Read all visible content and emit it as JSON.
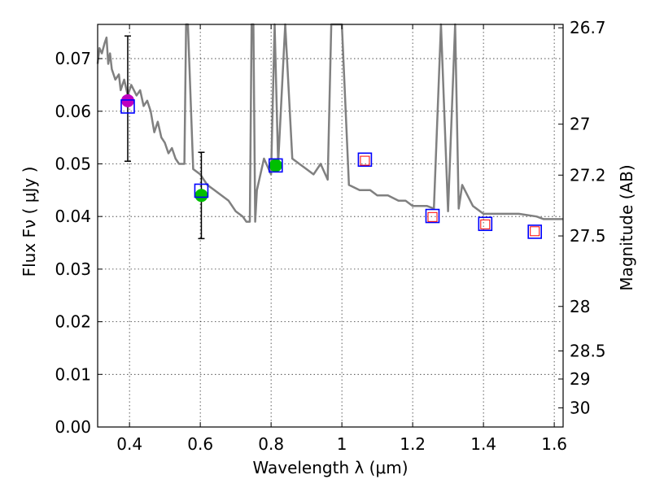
{
  "chart_data": {
    "type": "scatter",
    "title": "",
    "xlabel": "Wavelength  λ (μm)",
    "ylabel": "Flux  Fν  ( μJy )",
    "ylabel_right": "Magnitude (AB)",
    "xlim": [
      0.31,
      1.625
    ],
    "ylim": [
      0.0,
      0.0765
    ],
    "grid": true,
    "x_ticks": [
      0.4,
      0.6,
      0.8,
      1.0,
      1.2,
      1.4,
      1.6
    ],
    "x_tick_labels": [
      "0.4",
      "0.6",
      "0.8",
      "1",
      "1.2",
      "1.4",
      "1.6"
    ],
    "y_ticks": [
      0.0,
      0.01,
      0.02,
      0.03,
      0.04,
      0.05,
      0.06,
      0.07
    ],
    "y_tick_labels": [
      "0.00",
      "0.01",
      "0.02",
      "0.03",
      "0.04",
      "0.05",
      "0.06",
      "0.07"
    ],
    "right_axis_ticks": [
      {
        "mag": 26.7,
        "label": "26.7"
      },
      {
        "mag": 27.0,
        "label": "27"
      },
      {
        "mag": 27.2,
        "label": "27.2"
      },
      {
        "mag": 27.5,
        "label": "27.5"
      },
      {
        "mag": 28.0,
        "label": "28"
      },
      {
        "mag": 28.5,
        "label": "28.5"
      },
      {
        "mag": 29.0,
        "label": "29"
      },
      {
        "mag": 30.0,
        "label": "30"
      }
    ],
    "sed_model": {
      "name": "model spectrum",
      "color": "#808080",
      "x": [
        0.31,
        0.315,
        0.322,
        0.33,
        0.335,
        0.34,
        0.345,
        0.35,
        0.36,
        0.37,
        0.375,
        0.385,
        0.395,
        0.405,
        0.42,
        0.43,
        0.44,
        0.45,
        0.46,
        0.47,
        0.48,
        0.49,
        0.5,
        0.51,
        0.52,
        0.53,
        0.54,
        0.555,
        0.56,
        0.565,
        0.58,
        0.6,
        0.62,
        0.64,
        0.66,
        0.68,
        0.7,
        0.72,
        0.73,
        0.74,
        0.745,
        0.75,
        0.755,
        0.76,
        0.78,
        0.8,
        0.81,
        0.82,
        0.84,
        0.86,
        0.88,
        0.9,
        0.92,
        0.94,
        0.96,
        0.97,
        0.98,
        0.99,
        1.0,
        1.02,
        1.05,
        1.08,
        1.1,
        1.13,
        1.16,
        1.18,
        1.2,
        1.22,
        1.24,
        1.26,
        1.28,
        1.3,
        1.32,
        1.33,
        1.34,
        1.37,
        1.4,
        1.45,
        1.5,
        1.55,
        1.57,
        1.6,
        1.625
      ],
      "y": [
        0.069,
        0.072,
        0.071,
        0.073,
        0.074,
        0.069,
        0.071,
        0.068,
        0.066,
        0.067,
        0.064,
        0.066,
        0.063,
        0.065,
        0.063,
        0.064,
        0.061,
        0.062,
        0.06,
        0.056,
        0.058,
        0.055,
        0.054,
        0.052,
        0.053,
        0.051,
        0.05,
        0.05,
        0.0765,
        0.0765,
        0.049,
        0.048,
        0.046,
        0.045,
        0.044,
        0.043,
        0.041,
        0.04,
        0.039,
        0.039,
        0.0765,
        0.0765,
        0.039,
        0.045,
        0.051,
        0.048,
        0.0765,
        0.05,
        0.0765,
        0.051,
        0.05,
        0.049,
        0.048,
        0.05,
        0.047,
        0.0765,
        0.0765,
        0.0765,
        0.0765,
        0.046,
        0.045,
        0.045,
        0.044,
        0.044,
        0.043,
        0.043,
        0.042,
        0.042,
        0.042,
        0.0415,
        0.0765,
        0.041,
        0.0765,
        0.0415,
        0.046,
        0.042,
        0.0405,
        0.0405,
        0.0405,
        0.04,
        0.0395,
        0.0395,
        0.0395
      ]
    },
    "observed": [
      {
        "x": 0.395,
        "y": 0.062,
        "yerr_low": 0.0505,
        "yerr_high": 0.0743,
        "color": "#bf00bf"
      },
      {
        "x": 0.603,
        "y": 0.044,
        "yerr_low": 0.0358,
        "yerr_high": 0.0522,
        "color": "#00bf00"
      },
      {
        "x": 0.813,
        "y": 0.0497,
        "yerr_low": 0.0497,
        "yerr_high": 0.0497,
        "color": "#00bf00"
      }
    ],
    "synthetic_blue": [
      {
        "x": 0.395,
        "y": 0.0609
      },
      {
        "x": 0.603,
        "y": 0.0449
      },
      {
        "x": 0.813,
        "y": 0.0497
      },
      {
        "x": 1.065,
        "y": 0.0508
      },
      {
        "x": 1.256,
        "y": 0.0401
      },
      {
        "x": 1.405,
        "y": 0.0386
      },
      {
        "x": 1.545,
        "y": 0.0371
      }
    ],
    "synthetic_red": [
      {
        "x": 1.065,
        "y": 0.0506
      },
      {
        "x": 1.256,
        "y": 0.0399
      },
      {
        "x": 1.405,
        "y": 0.0385
      },
      {
        "x": 1.545,
        "y": 0.0372
      }
    ],
    "colors": {
      "blue_square": "#0000ff",
      "red_square": "#ff0000",
      "model": "#808080"
    }
  }
}
